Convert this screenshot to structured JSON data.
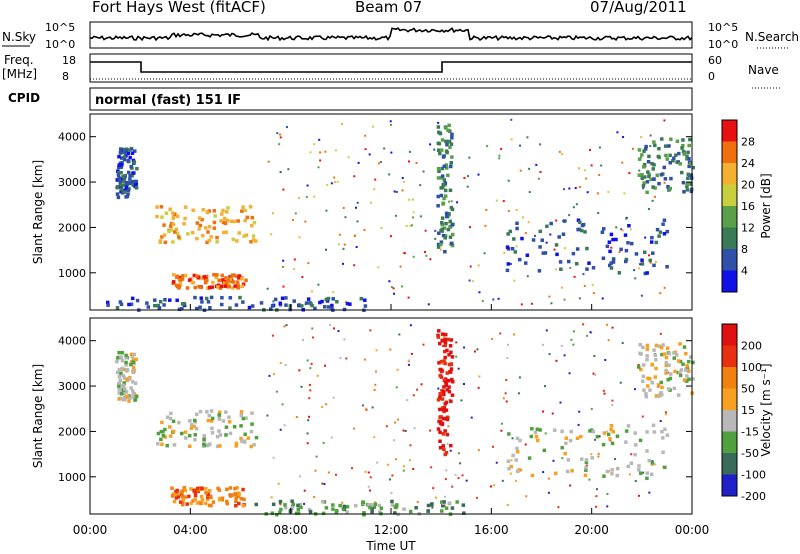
{
  "header": {
    "station": "Fort Hays West (fitACF)",
    "beam": "Beam 07",
    "date": "07/Aug/2011"
  },
  "top_panel": {
    "nsky_label": "N.Sky",
    "nsky_ticks": [
      "10^5",
      "10^0"
    ],
    "nsearch_label": "N.Search",
    "nsearch_ticks": [
      "10^5",
      "10^0"
    ],
    "freq_label_1": "Freq.",
    "freq_label_2": "[MHz]",
    "freq_ticks": [
      "18",
      "8"
    ],
    "nave_label": "Nave",
    "nave_ticks": [
      "60",
      "0"
    ],
    "cpid_label": "CPID",
    "cpid_value": "normal (fast) 151 IF"
  },
  "colors": {
    "power_scale": [
      "#1010e8",
      "#2f4fa8",
      "#3a7a56",
      "#5aa04a",
      "#c8d040",
      "#f4b030",
      "#f07010",
      "#e81010"
    ],
    "velocity_scale": [
      "#2020c8",
      "#3a6a5a",
      "#50a040",
      "#b8b8b8",
      "#f8a020",
      "#f08010",
      "#e83010",
      "#e01010"
    ]
  },
  "chart_data": [
    {
      "type": "heatmap",
      "title": "Power",
      "ylabel": "Slant Range [km]",
      "xlabel": "",
      "x_ticks": [
        "00:00",
        "04:00",
        "08:00",
        "12:00",
        "16:00",
        "20:00",
        "00:00"
      ],
      "y_ticks": [
        1000,
        2000,
        3000,
        4000
      ],
      "ylim": [
        180,
        4500
      ],
      "xlim": [
        0,
        24
      ],
      "colorbar": {
        "label": "Power [dB]",
        "ticks": [
          4,
          8,
          12,
          16,
          20,
          24,
          28
        ]
      },
      "regions": [
        {
          "t0": 1.0,
          "t1": 1.8,
          "r0": 2700,
          "r1": 3800,
          "level": 1
        },
        {
          "t0": 2.6,
          "t1": 6.6,
          "r0": 1700,
          "r1": 2500,
          "level": 5
        },
        {
          "t0": 3.2,
          "t1": 6.2,
          "r0": 700,
          "r1": 1000,
          "level": 6
        },
        {
          "t0": 13.8,
          "t1": 14.4,
          "r0": 1500,
          "r1": 4300,
          "level": 2
        },
        {
          "t0": 16.5,
          "t1": 23.0,
          "r0": 1000,
          "r1": 2200,
          "level": 1
        },
        {
          "t0": 21.8,
          "t1": 24.0,
          "r0": 2800,
          "r1": 4000,
          "level": 2
        },
        {
          "t0": 0.5,
          "t1": 11.0,
          "r0": 200,
          "r1": 500,
          "level": 1
        }
      ]
    },
    {
      "type": "heatmap",
      "title": "Velocity",
      "ylabel": "Slant Range [km]",
      "xlabel": "Time UT",
      "x_ticks": [
        "00:00",
        "04:00",
        "08:00",
        "12:00",
        "16:00",
        "20:00",
        "00:00"
      ],
      "y_ticks": [
        1000,
        2000,
        3000,
        4000
      ],
      "ylim": [
        180,
        4500
      ],
      "xlim": [
        0,
        24
      ],
      "colorbar": {
        "label": "Velocity [m s⁻¹]",
        "ticks": [
          200,
          100,
          50,
          15,
          -15,
          -50,
          -100,
          -200
        ]
      },
      "regions": [
        {
          "t0": 1.0,
          "t1": 1.8,
          "r0": 2700,
          "r1": 3800,
          "level": 3
        },
        {
          "t0": 2.6,
          "t1": 6.6,
          "r0": 1700,
          "r1": 2500,
          "level": 3
        },
        {
          "t0": 3.2,
          "t1": 6.2,
          "r0": 400,
          "r1": 800,
          "level": 5
        },
        {
          "t0": 13.8,
          "t1": 14.4,
          "r0": 1500,
          "r1": 4300,
          "level": 7
        },
        {
          "t0": 16.5,
          "t1": 23.0,
          "r0": 1000,
          "r1": 2200,
          "level": 3
        },
        {
          "t0": 21.8,
          "t1": 24.0,
          "r0": 2800,
          "r1": 4000,
          "level": 3
        },
        {
          "t0": 6.5,
          "t1": 15.0,
          "r0": 200,
          "r1": 500,
          "level": 2
        }
      ]
    }
  ]
}
